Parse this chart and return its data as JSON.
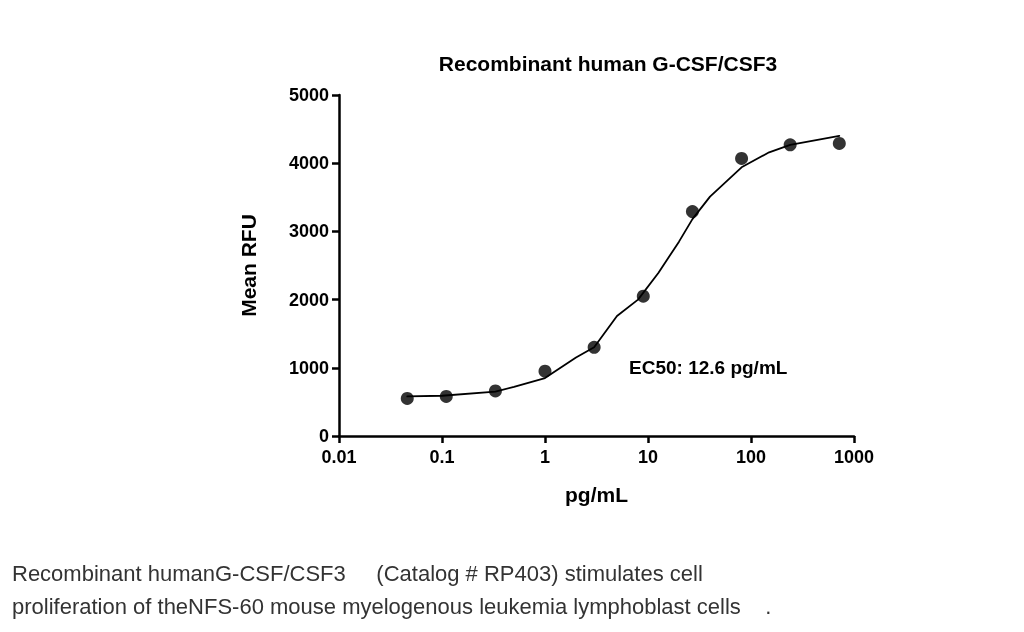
{
  "chart_data": {
    "type": "scatter",
    "title": "Recombinant human G-CSF/CSF3",
    "xlabel": "pg/mL",
    "ylabel": "Mean RFU",
    "series": [
      {
        "color": "#000000",
        "marker": "circle",
        "x": [
          0.046,
          0.11,
          0.33,
          1,
          3,
          9,
          27,
          81,
          240,
          720
        ],
        "values": [
          550,
          580,
          660,
          950,
          1300,
          2050,
          3290,
          4070,
          4270,
          4290
        ]
      },
      {
        "type": "line",
        "color": "#000000",
        "marker": "none",
        "line_style": "solid",
        "x": [
          0.046,
          0.1,
          0.33,
          0.5,
          1,
          2,
          3,
          5,
          8,
          12.6,
          20,
          27,
          40,
          81,
          150,
          240,
          720
        ],
        "values": [
          580,
          590,
          650,
          720,
          850,
          1150,
          1300,
          1760,
          2000,
          2390,
          2850,
          3180,
          3510,
          3940,
          4160,
          4270,
          4400
        ]
      }
    ],
    "log": "x",
    "xlim": [
      0.01,
      1000
    ],
    "xticks": [
      0.01,
      0.1,
      1,
      10,
      100,
      1000
    ],
    "ylim": [
      0,
      5000
    ],
    "yticks": [
      0,
      1000,
      2000,
      3000,
      4000,
      5000
    ],
    "grid": false,
    "annotations": [
      "EC50: 12.6 pg/mL",
      "Recombinant humanG-CSF/CSF3     (Catalog # RP403) stimulates cell",
      "proliferation of theNFS-60 mouse myelogenous leukemia lymphoblast cells    ."
    ]
  }
}
